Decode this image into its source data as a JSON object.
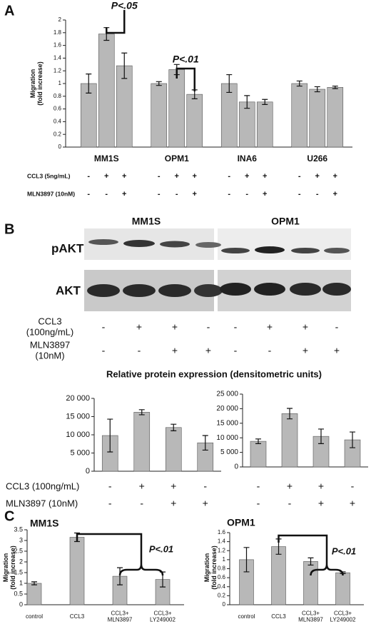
{
  "panel_labels": [
    "A",
    "B",
    "C"
  ],
  "chart_data": [
    {
      "type": "bar",
      "ylabel": "Migration\n(fold increase)",
      "categories": [
        "MM1S",
        "OPM1",
        "INA6",
        "U266"
      ],
      "series": [
        {
          "color": "#b8b8b8",
          "values": [
            1.0,
            1.0,
            1.0,
            1.0
          ],
          "errors": [
            0.15,
            0.03,
            0.14,
            0.04
          ]
        },
        {
          "color": "#b8b8b8",
          "values": [
            1.78,
            1.22,
            0.71,
            0.91
          ],
          "errors": [
            0.1,
            0.08,
            0.1,
            0.04
          ]
        },
        {
          "color": "#b8b8b8",
          "values": [
            1.28,
            0.83,
            0.71,
            0.94
          ],
          "errors": [
            0.2,
            0.07,
            0.04,
            0.02
          ]
        }
      ],
      "ylim": [
        0,
        2
      ],
      "yticks": [
        0,
        0.2,
        0.4,
        0.6,
        0.8,
        1,
        1.2,
        1.4,
        1.6,
        1.8,
        2
      ],
      "annotations": [
        "P<.05",
        "P<.01"
      ],
      "conditions": [
        {
          "label": "CCL3 (5ng/mL)",
          "signs": [
            "-",
            "+",
            "+",
            "-",
            "+",
            "+",
            "-",
            "+",
            "+",
            "-",
            "+",
            "+"
          ]
        },
        {
          "label": "MLN3897 (10nM)",
          "signs": [
            "-",
            "-",
            "+",
            "-",
            "-",
            "+",
            "-",
            "-",
            "+",
            "-",
            "-",
            "+"
          ]
        }
      ]
    },
    {
      "type": "bar",
      "color": "#b8b8b8",
      "values": [
        9800,
        16200,
        12000,
        7800
      ],
      "errors": [
        4500,
        700,
        900,
        2000
      ],
      "ylim": [
        0,
        20000
      ],
      "yticks": [
        0,
        {
          "value": 5000,
          "label": "5 000"
        },
        {
          "value": 10000,
          "label": "10 000"
        },
        {
          "value": 15000,
          "label": "15 000"
        },
        {
          "value": 20000,
          "label": "20 000"
        }
      ]
    },
    {
      "type": "bar",
      "color": "#b8b8b8",
      "values": [
        8800,
        18300,
        10500,
        9300
      ],
      "errors": [
        800,
        1800,
        2500,
        2700
      ],
      "ylim": [
        0,
        25000
      ],
      "yticks": [
        0,
        {
          "value": 5000,
          "label": "5 000"
        },
        {
          "value": 10000,
          "label": "10 000"
        },
        {
          "value": 15000,
          "label": "15 000"
        },
        {
          "value": 20000,
          "label": "20 000"
        },
        {
          "value": 25000,
          "label": "25 000"
        }
      ]
    },
    {
      "type": "bar",
      "title": "MM1S",
      "ylabel": "Migration\n(fold increase)",
      "color": "#b8b8b8",
      "categories": [
        "control",
        "CCL3",
        "CCL3+\nMLN3897",
        "CCL3+\nLY249002"
      ],
      "values": [
        1.0,
        3.15,
        1.33,
        1.18
      ],
      "errors": [
        0.07,
        0.2,
        0.4,
        0.35
      ],
      "ylim": [
        0,
        3.5
      ],
      "yticks": [
        0,
        0.5,
        1,
        1.5,
        2,
        2.5,
        3,
        3.5
      ],
      "annotations": [
        "P<.01"
      ]
    },
    {
      "type": "bar",
      "title": "OPM1",
      "ylabel": "Migration\n(fold increase)",
      "color": "#b8b8b8",
      "categories": [
        "control",
        "CCL3",
        "CCL3+\nMLN3897",
        "CCL3+\nLY249002"
      ],
      "values": [
        1.0,
        1.29,
        0.96,
        0.71
      ],
      "errors": [
        0.27,
        0.17,
        0.08,
        0.02
      ],
      "ylim": [
        0,
        1.6
      ],
      "yticks": [
        0,
        0.2,
        0.4,
        0.6,
        0.8,
        1,
        1.2,
        1.4,
        1.6
      ],
      "annotations": [
        "P<.01"
      ]
    }
  ],
  "blot": {
    "cell_lines": [
      "MM1S",
      "OPM1"
    ],
    "rows": [
      "pAKT",
      "AKT"
    ],
    "conditions": [
      {
        "label": "CCL3\n(100ng/mL)",
        "signs": [
          "-",
          "+",
          "+",
          "-",
          "-",
          "+",
          "+",
          "-"
        ]
      },
      {
        "label": "MLN3897\n(10nM)",
        "signs": [
          "-",
          "-",
          "+",
          "+",
          "-",
          "-",
          "+",
          "+"
        ]
      }
    ]
  },
  "densitometry": {
    "title": "Relative protein expression (densitometric units)",
    "conditions": [
      {
        "label": "CCL3 (100ng/mL)",
        "signs": [
          "-",
          "+",
          "+",
          "-",
          "-",
          "+",
          "+",
          "-"
        ]
      },
      {
        "label": "MLN3897 (10nM)",
        "signs": [
          "-",
          "-",
          "+",
          "+",
          "-",
          "-",
          "+",
          "+"
        ]
      }
    ]
  }
}
